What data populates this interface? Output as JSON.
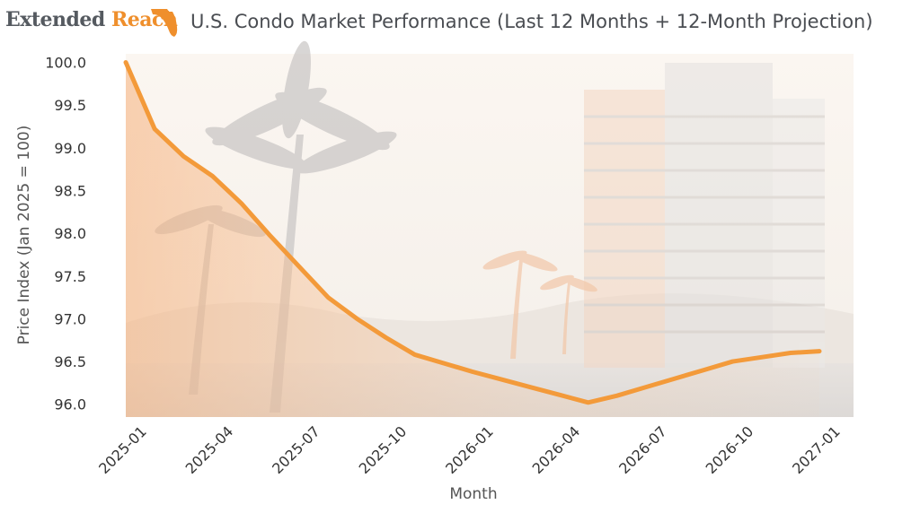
{
  "brand": {
    "word1": "Extended",
    "word2": "Reach",
    "logo_icon": "florida-state-icon",
    "color_text": "#555a60",
    "color_accent": "#ef8f2c"
  },
  "chart_data": {
    "type": "line",
    "title": "U.S. Condo Market Performance (Last 12 Months + 12-Month Projection)",
    "xlabel": "Month",
    "ylabel": "Price Index (Jan 2025 = 100)",
    "x": [
      "2025-01",
      "2025-02",
      "2025-03",
      "2025-04",
      "2025-05",
      "2025-06",
      "2025-07",
      "2025-08",
      "2025-09",
      "2025-10",
      "2025-11",
      "2025-12",
      "2026-01",
      "2026-02",
      "2026-03",
      "2026-04",
      "2026-05",
      "2026-06",
      "2026-07",
      "2026-08",
      "2026-09",
      "2026-10",
      "2026-11",
      "2026-12",
      "2027-01"
    ],
    "series": [
      {
        "color": "#f39a3a",
        "values": [
          100.0,
          99.22,
          98.9,
          98.67,
          98.35,
          97.97,
          97.61,
          97.25,
          97.0,
          96.78,
          96.58,
          96.48,
          96.38,
          96.29,
          96.2,
          96.11,
          96.02,
          96.1,
          96.2,
          96.3,
          96.4,
          96.5,
          96.55,
          96.6,
          96.62
        ]
      }
    ],
    "xticks": [
      "2025-01",
      "2025-04",
      "2025-07",
      "2025-10",
      "2026-01",
      "2026-04",
      "2026-07",
      "2026-10",
      "2027-01"
    ],
    "yticks": [
      "96.0",
      "96.5",
      "97.0",
      "97.5",
      "98.0",
      "98.5",
      "99.0",
      "99.5",
      "100.0"
    ],
    "ylim": [
      95.85,
      100.1
    ],
    "grid": false,
    "background": "tropical palm trees and high-rise condo building illustration"
  }
}
